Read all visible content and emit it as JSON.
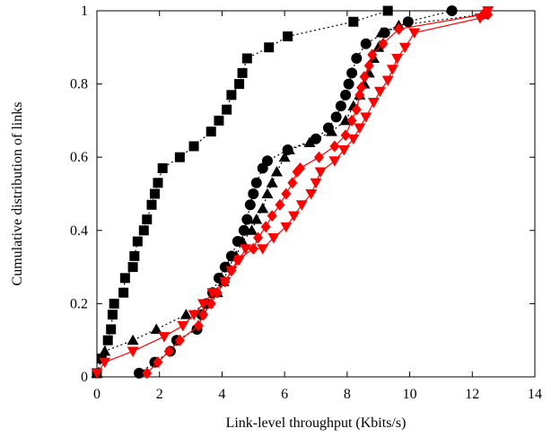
{
  "chart_data": {
    "type": "line",
    "title": "",
    "xlabel": "Link-level throughput (Kbits/s)",
    "ylabel": "Cumulative distribution of links",
    "xlim": [
      0,
      14
    ],
    "ylim": [
      0,
      1
    ],
    "xticks": [
      0,
      2,
      4,
      6,
      8,
      10,
      12,
      14
    ],
    "yticks": [
      0,
      0.2,
      0.4,
      0.6,
      0.8,
      1
    ],
    "ytick_labels": [
      "0",
      "0.2",
      "0.4",
      "0.6",
      "0.8",
      "1"
    ],
    "grid": false,
    "legend": "none",
    "series": [
      {
        "marker": "square",
        "color": "#000000",
        "line": "dotted",
        "points": [
          [
            0.0,
            0.01
          ],
          [
            0.15,
            0.05
          ],
          [
            0.35,
            0.1
          ],
          [
            0.45,
            0.13
          ],
          [
            0.5,
            0.17
          ],
          [
            0.55,
            0.2
          ],
          [
            0.85,
            0.23
          ],
          [
            0.9,
            0.27
          ],
          [
            1.15,
            0.3
          ],
          [
            1.2,
            0.33
          ],
          [
            1.3,
            0.37
          ],
          [
            1.5,
            0.4
          ],
          [
            1.6,
            0.43
          ],
          [
            1.75,
            0.47
          ],
          [
            1.85,
            0.5
          ],
          [
            1.95,
            0.53
          ],
          [
            2.1,
            0.57
          ],
          [
            2.65,
            0.6
          ],
          [
            3.1,
            0.63
          ],
          [
            3.65,
            0.67
          ],
          [
            3.9,
            0.7
          ],
          [
            4.15,
            0.73
          ],
          [
            4.3,
            0.77
          ],
          [
            4.55,
            0.8
          ],
          [
            4.65,
            0.83
          ],
          [
            4.8,
            0.87
          ],
          [
            5.5,
            0.9
          ],
          [
            6.1,
            0.93
          ],
          [
            8.2,
            0.97
          ],
          [
            9.3,
            1.0
          ]
        ]
      },
      {
        "marker": "circle",
        "color": "#000000",
        "line": "dotted",
        "points": [
          [
            1.35,
            0.01
          ],
          [
            1.85,
            0.04
          ],
          [
            2.35,
            0.07
          ],
          [
            2.55,
            0.1
          ],
          [
            3.2,
            0.13
          ],
          [
            3.35,
            0.17
          ],
          [
            3.5,
            0.2
          ],
          [
            3.7,
            0.23
          ],
          [
            3.9,
            0.27
          ],
          [
            4.1,
            0.3
          ],
          [
            4.3,
            0.33
          ],
          [
            4.5,
            0.37
          ],
          [
            4.7,
            0.4
          ],
          [
            4.8,
            0.43
          ],
          [
            4.9,
            0.47
          ],
          [
            5.0,
            0.5
          ],
          [
            5.1,
            0.53
          ],
          [
            5.3,
            0.57
          ],
          [
            5.45,
            0.59
          ],
          [
            6.1,
            0.62
          ],
          [
            7.0,
            0.65
          ],
          [
            7.4,
            0.68
          ],
          [
            7.65,
            0.71
          ],
          [
            7.8,
            0.74
          ],
          [
            7.95,
            0.77
          ],
          [
            8.05,
            0.8
          ],
          [
            8.15,
            0.83
          ],
          [
            8.3,
            0.87
          ],
          [
            8.6,
            0.91
          ],
          [
            9.2,
            0.94
          ],
          [
            9.95,
            0.97
          ],
          [
            11.35,
            1.0
          ]
        ]
      },
      {
        "marker": "triangle",
        "color": "#000000",
        "line": "dotted",
        "points": [
          [
            0.0,
            0.01
          ],
          [
            0.25,
            0.07
          ],
          [
            1.15,
            0.1
          ],
          [
            1.9,
            0.13
          ],
          [
            2.85,
            0.17
          ],
          [
            3.55,
            0.2
          ],
          [
            3.85,
            0.23
          ],
          [
            4.05,
            0.26
          ],
          [
            4.2,
            0.3
          ],
          [
            4.45,
            0.33
          ],
          [
            4.65,
            0.37
          ],
          [
            4.95,
            0.4
          ],
          [
            5.1,
            0.43
          ],
          [
            5.3,
            0.46
          ],
          [
            5.45,
            0.5
          ],
          [
            5.6,
            0.53
          ],
          [
            5.75,
            0.56
          ],
          [
            6.0,
            0.6
          ],
          [
            6.15,
            0.62
          ],
          [
            6.8,
            0.64
          ],
          [
            7.5,
            0.67
          ],
          [
            7.95,
            0.7
          ],
          [
            8.2,
            0.74
          ],
          [
            8.4,
            0.77
          ],
          [
            8.55,
            0.8
          ],
          [
            8.7,
            0.83
          ],
          [
            8.85,
            0.87
          ],
          [
            9.0,
            0.9
          ],
          [
            9.1,
            0.94
          ],
          [
            9.65,
            0.96
          ],
          [
            12.35,
            0.99
          ]
        ]
      },
      {
        "marker": "diamond",
        "color": "#ff0000",
        "line": "solid",
        "points": [
          [
            1.6,
            0.01
          ],
          [
            1.95,
            0.04
          ],
          [
            2.3,
            0.07
          ],
          [
            2.65,
            0.1
          ],
          [
            3.25,
            0.14
          ],
          [
            3.4,
            0.17
          ],
          [
            3.65,
            0.2
          ],
          [
            3.85,
            0.23
          ],
          [
            4.1,
            0.26
          ],
          [
            4.3,
            0.29
          ],
          [
            4.5,
            0.32
          ],
          [
            5.0,
            0.35
          ],
          [
            5.15,
            0.38
          ],
          [
            5.4,
            0.41
          ],
          [
            5.6,
            0.44
          ],
          [
            5.85,
            0.47
          ],
          [
            6.05,
            0.5
          ],
          [
            6.25,
            0.53
          ],
          [
            6.4,
            0.56
          ],
          [
            6.5,
            0.57
          ],
          [
            7.1,
            0.6
          ],
          [
            7.6,
            0.63
          ],
          [
            7.95,
            0.66
          ],
          [
            8.15,
            0.7
          ],
          [
            8.3,
            0.73
          ],
          [
            8.4,
            0.77
          ],
          [
            8.45,
            0.79
          ],
          [
            8.55,
            0.82
          ],
          [
            8.7,
            0.85
          ],
          [
            8.8,
            0.88
          ],
          [
            9.15,
            0.91
          ],
          [
            9.65,
            0.95
          ],
          [
            12.35,
            0.99
          ],
          [
            12.5,
            0.99
          ]
        ]
      },
      {
        "marker": "inverted-triangle",
        "color": "#ff0000",
        "line": "solid",
        "points": [
          [
            0.0,
            0.01
          ],
          [
            0.25,
            0.04
          ],
          [
            1.15,
            0.07
          ],
          [
            2.15,
            0.11
          ],
          [
            2.75,
            0.14
          ],
          [
            3.1,
            0.17
          ],
          [
            3.4,
            0.2
          ],
          [
            3.7,
            0.23
          ],
          [
            4.1,
            0.26
          ],
          [
            4.3,
            0.29
          ],
          [
            4.55,
            0.32
          ],
          [
            4.75,
            0.35
          ],
          [
            5.3,
            0.35
          ],
          [
            5.65,
            0.38
          ],
          [
            6.05,
            0.41
          ],
          [
            6.3,
            0.44
          ],
          [
            6.55,
            0.47
          ],
          [
            6.85,
            0.5
          ],
          [
            7.0,
            0.53
          ],
          [
            7.15,
            0.56
          ],
          [
            7.6,
            0.59
          ],
          [
            7.9,
            0.62
          ],
          [
            8.2,
            0.65
          ],
          [
            8.4,
            0.68
          ],
          [
            8.6,
            0.71
          ],
          [
            8.85,
            0.75
          ],
          [
            9.05,
            0.78
          ],
          [
            9.3,
            0.81
          ],
          [
            9.45,
            0.84
          ],
          [
            9.6,
            0.87
          ],
          [
            9.85,
            0.9
          ],
          [
            10.15,
            0.94
          ],
          [
            12.25,
            0.98
          ],
          [
            12.5,
            1.0
          ]
        ]
      }
    ]
  }
}
